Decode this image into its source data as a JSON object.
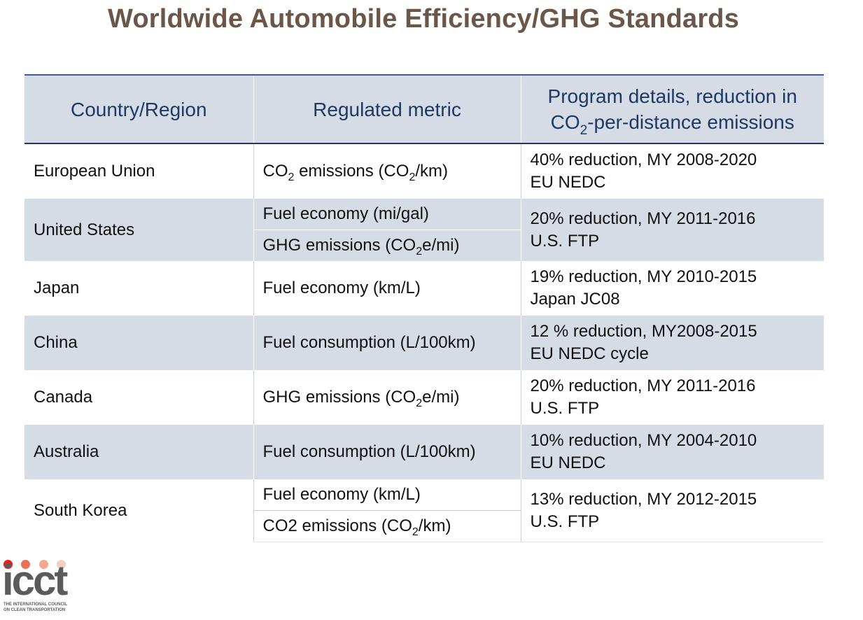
{
  "title": "Worldwide Automobile Efficiency/GHG Standards",
  "header": {
    "col1": "Country/Region",
    "col2": "Regulated metric",
    "col3_line1": "Program details, reduction in",
    "col3_line2_pre": "CO",
    "col3_line2_sub": "2",
    "col3_line2_post": "-per-distance emissions"
  },
  "rows": [
    {
      "country": "European Union",
      "metrics": [
        {
          "pre": "CO",
          "sub": "2",
          "mid": " emissions (CO",
          "sub2": "2",
          "post": "/km)"
        }
      ],
      "details_line1": "40% reduction, MY 2008-2020",
      "details_line2": "EU NEDC"
    },
    {
      "country": "United States",
      "metrics": [
        {
          "text": "Fuel economy (mi/gal)"
        },
        {
          "pre": "GHG emissions (CO",
          "sub": "2",
          "post": "e/mi)"
        }
      ],
      "details_line1": "20% reduction, MY 2011-2016",
      "details_line2": "U.S. FTP"
    },
    {
      "country": "Japan",
      "metrics": [
        {
          "text": "Fuel economy (km/L)"
        }
      ],
      "details_line1": "19% reduction, MY 2010-2015",
      "details_line2": "Japan JC08"
    },
    {
      "country": "China",
      "metrics": [
        {
          "text": "Fuel consumption (L/100km)"
        }
      ],
      "details_line1": "12 % reduction, MY2008-2015",
      "details_line2": "EU NEDC cycle"
    },
    {
      "country": "Canada",
      "metrics": [
        {
          "pre": "GHG emissions (CO",
          "sub": "2",
          "post": "e/mi)"
        }
      ],
      "details_line1": "20% reduction, MY 2011-2016",
      "details_line2": "U.S. FTP"
    },
    {
      "country": "Australia",
      "metrics": [
        {
          "text": "Fuel consumption (L/100km)"
        }
      ],
      "details_line1": "10% reduction, MY 2004-2010",
      "details_line2": "EU NEDC"
    },
    {
      "country": "South Korea",
      "metrics": [
        {
          "text": "Fuel economy (km/L)"
        },
        {
          "pre": "CO2 emissions (CO",
          "sub": "2",
          "post": "/km)"
        }
      ],
      "details_line1": "13% reduction, MY 2012-2015",
      "details_line2": "U.S. FTP"
    }
  ],
  "logo": {
    "wordmark": "icct",
    "tagline_line1": "THE INTERNATIONAL COUNCIL",
    "tagline_line2": "ON CLEAN TRANSPORTATION",
    "dot_colors": [
      "#e2231a",
      "#eb6f58",
      "#f2a891",
      "#f5cfc3"
    ]
  },
  "colors": {
    "title": "#6a5748",
    "header_text": "#1f3864",
    "band_fill": "#d6dce6",
    "rule": "#1f3864"
  }
}
